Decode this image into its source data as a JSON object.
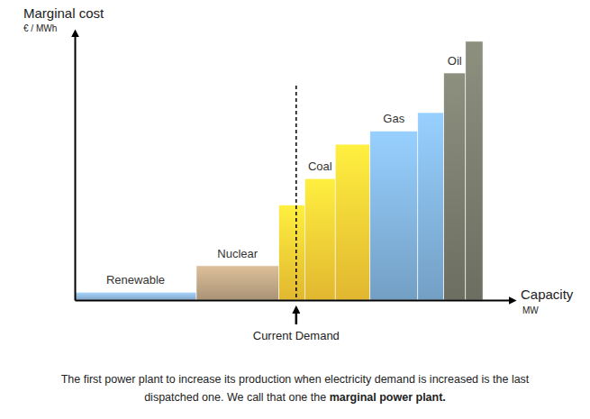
{
  "chart_data": {
    "type": "bar",
    "y_label": "Marginal cost",
    "y_unit": "€ / MWh",
    "x_label": "Capacity",
    "x_unit": "MW",
    "xlim": [
      0,
      100
    ],
    "ylim": [
      0,
      100
    ],
    "xticks": [],
    "yticks": [],
    "tick_labels": false,
    "series": [
      {
        "name": "Renewable",
        "color": "#8db3d8",
        "capacities": [
          28
        ],
        "values": [
          3
        ]
      },
      {
        "name": "Nuclear",
        "color": "#b9a181",
        "capacities": [
          19
        ],
        "values": [
          13
        ]
      },
      {
        "name": "Coal",
        "color": "#f6c835",
        "capacities": [
          6,
          7,
          8
        ],
        "values": [
          36,
          46,
          59
        ]
      },
      {
        "name": "Gas",
        "color": "#7eaed6",
        "capacities": [
          11,
          6
        ],
        "values": [
          64,
          71
        ]
      },
      {
        "name": "Oil",
        "color": "#76786a",
        "capacities": [
          5,
          4
        ],
        "values": [
          86,
          98
        ]
      }
    ],
    "demand": {
      "label": "Current Demand",
      "value": 51
    },
    "caption": {
      "lines": [
        "The first power plant to increase its production when electricity demand is increased is the last",
        "dispatched one. We call that one the"
      ],
      "emphasis": "marginal power plant."
    }
  }
}
